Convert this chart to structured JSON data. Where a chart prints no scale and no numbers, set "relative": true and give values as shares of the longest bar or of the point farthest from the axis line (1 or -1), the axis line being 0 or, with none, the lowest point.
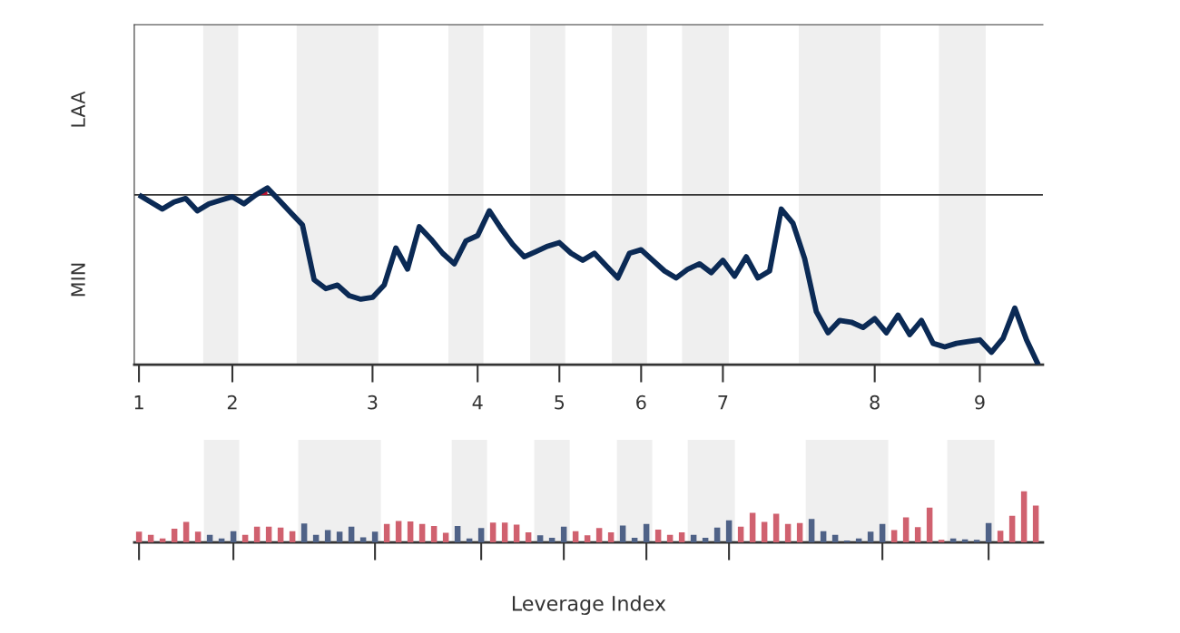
{
  "chart_data": [
    {
      "type": "line",
      "relative": true,
      "categories": [
        "1",
        null,
        null,
        null,
        null,
        null,
        null,
        null,
        "2",
        null,
        null,
        null,
        null,
        null,
        null,
        null,
        null,
        null,
        null,
        null,
        "3",
        null,
        null,
        null,
        null,
        null,
        null,
        null,
        null,
        "4",
        null,
        null,
        null,
        null,
        null,
        null,
        "5",
        null,
        null,
        null,
        null,
        null,
        null,
        "6",
        null,
        null,
        null,
        null,
        null,
        null,
        "7",
        null,
        null,
        null,
        null,
        null,
        null,
        null,
        null,
        null,
        null,
        null,
        null,
        "8",
        null,
        null,
        null,
        null,
        null,
        null,
        null,
        null,
        "9",
        null,
        null,
        null,
        null,
        null
      ],
      "series": [
        {
          "color": "#0b2a55",
          "values": [
            0.96,
            0.92,
            0.88,
            0.92,
            0.94,
            0.87,
            0.91,
            0.93,
            0.95,
            0.91,
            0.96,
            1.0,
            0.93,
            0.86,
            0.79,
            0.48,
            0.43,
            0.45,
            0.39,
            0.37,
            0.38,
            0.45,
            0.66,
            0.54,
            0.78,
            0.71,
            0.63,
            0.57,
            0.7,
            0.73,
            0.87,
            0.77,
            0.68,
            0.61,
            0.64,
            0.67,
            0.69,
            0.63,
            0.59,
            0.63,
            0.56,
            0.49,
            0.63,
            0.65,
            0.59,
            0.53,
            0.49,
            0.54,
            0.57,
            0.52,
            0.59,
            0.5,
            0.61,
            0.49,
            0.53,
            0.88,
            0.8,
            0.6,
            0.3,
            0.18,
            0.25,
            0.24,
            0.21,
            0.26,
            0.18,
            0.28,
            0.17,
            0.25,
            0.12,
            0.1,
            0.12,
            0.13,
            0.14,
            0.07,
            0.15,
            0.32,
            0.14,
            0.0
          ]
        },
        {
          "type": "area",
          "color": "#b5112f",
          "values": [
            null,
            null,
            null,
            null,
            null,
            null,
            null,
            null,
            null,
            null,
            0.96,
            1.0,
            null,
            null,
            null,
            null,
            null,
            null,
            null,
            null,
            null,
            null,
            null,
            null,
            null,
            null,
            null,
            null,
            null,
            null,
            null,
            null,
            null,
            null,
            null,
            null,
            null,
            null,
            null,
            null,
            null,
            null,
            null,
            null,
            null,
            null,
            null,
            null,
            null,
            null,
            null,
            null,
            null,
            null,
            null,
            null,
            null,
            null,
            null,
            null,
            null,
            null,
            null,
            null,
            null,
            null,
            null,
            null,
            null,
            null,
            null,
            null,
            null,
            null,
            null,
            null,
            null,
            null
          ]
        }
      ],
      "annotations": [
        "MIN",
        "LAA"
      ],
      "ref_lines": [
        {
          "axis": "y",
          "value": 0.96,
          "color": "#333333"
        }
      ],
      "grid": false
    },
    {
      "type": "bar",
      "xlabel": "Leverage Index",
      "relative": true,
      "categories": [
        null,
        null,
        null,
        null,
        null,
        null,
        null,
        null,
        null,
        null,
        null,
        null,
        null,
        null,
        null,
        null,
        null,
        null,
        null,
        null,
        null,
        null,
        null,
        null,
        null,
        null,
        null,
        null,
        null,
        null,
        null,
        null,
        null,
        null,
        null,
        null,
        null,
        null,
        null,
        null,
        null,
        null,
        null,
        null,
        null,
        null,
        null,
        null,
        null,
        null,
        null,
        null,
        null,
        null,
        null,
        null,
        null,
        null,
        null,
        null,
        null,
        null,
        null,
        null,
        null,
        null,
        null,
        null,
        null,
        null,
        null,
        null,
        null,
        null,
        null,
        null,
        null
      ],
      "values": [
        0.21,
        0.15,
        0.08,
        0.27,
        0.4,
        0.21,
        0.15,
        0.08,
        0.22,
        0.15,
        0.31,
        0.31,
        0.29,
        0.22,
        0.37,
        0.15,
        0.24,
        0.21,
        0.31,
        0.1,
        0.21,
        0.36,
        0.42,
        0.41,
        0.36,
        0.32,
        0.19,
        0.32,
        0.08,
        0.28,
        0.39,
        0.39,
        0.35,
        0.2,
        0.14,
        0.09,
        0.31,
        0.22,
        0.14,
        0.28,
        0.2,
        0.33,
        0.09,
        0.36,
        0.25,
        0.15,
        0.2,
        0.15,
        0.09,
        0.29,
        0.43,
        0.31,
        0.58,
        0.4,
        0.56,
        0.36,
        0.38,
        0.46,
        0.22,
        0.15,
        0.04,
        0.08,
        0.21,
        0.36,
        0.24,
        0.49,
        0.3,
        0.68,
        0.05,
        0.08,
        0.06,
        0.05,
        0.38,
        0.23,
        0.52,
        1.0,
        0.72
      ],
      "colors": [
        "#d0616f",
        "#d0616f",
        "#d0616f",
        "#d0616f",
        "#d0616f",
        "#d0616f",
        "#4f6287",
        "#4f6287",
        "#4f6287",
        "#d0616f",
        "#d0616f",
        "#d0616f",
        "#d0616f",
        "#d0616f",
        "#4f6287",
        "#4f6287",
        "#4f6287",
        "#4f6287",
        "#4f6287",
        "#4f6287",
        "#4f6287",
        "#d0616f",
        "#d0616f",
        "#d0616f",
        "#d0616f",
        "#d0616f",
        "#d0616f",
        "#4f6287",
        "#4f6287",
        "#4f6287",
        "#d0616f",
        "#d0616f",
        "#d0616f",
        "#d0616f",
        "#4f6287",
        "#4f6287",
        "#4f6287",
        "#d0616f",
        "#d0616f",
        "#d0616f",
        "#d0616f",
        "#4f6287",
        "#4f6287",
        "#4f6287",
        "#d0616f",
        "#d0616f",
        "#d0616f",
        "#4f6287",
        "#4f6287",
        "#4f6287",
        "#4f6287",
        "#d0616f",
        "#d0616f",
        "#d0616f",
        "#d0616f",
        "#d0616f",
        "#d0616f",
        "#4f6287",
        "#4f6287",
        "#4f6287",
        "#4f6287",
        "#4f6287",
        "#4f6287",
        "#4f6287",
        "#d0616f",
        "#d0616f",
        "#d0616f",
        "#d0616f",
        "#d0616f",
        "#4f6287",
        "#4f6287",
        "#4f6287",
        "#4f6287",
        "#d0616f",
        "#d0616f",
        "#d0616f",
        "#d0616f"
      ],
      "grid": false
    }
  ]
}
